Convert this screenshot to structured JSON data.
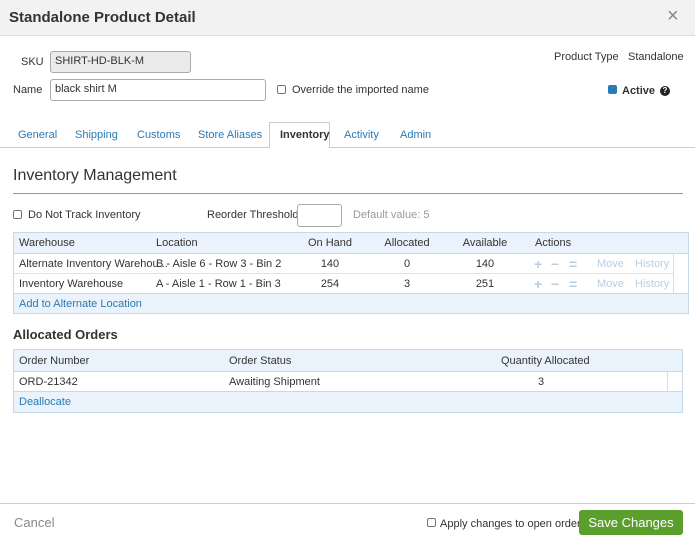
{
  "header": {
    "title": "Standalone Product Detail",
    "close": "×"
  },
  "fields": {
    "sku_label": "SKU",
    "sku": "SHIRT-HD-BLK-M",
    "name_label": "Name",
    "name": "black shirt M",
    "override": "Override the imported name",
    "product_type_label": "Product Type",
    "product_type": "Standalone",
    "active": "Active",
    "help": "?"
  },
  "tabs": {
    "items": [
      "General",
      "Shipping",
      "Customs",
      "Store Aliases",
      "Inventory",
      "Activity",
      "Admin"
    ],
    "active": 4
  },
  "inventory": {
    "title": "Inventory Management",
    "do_not_track": "Do Not Track Inventory",
    "reorder_label": "Reorder Threshold",
    "default_hint": "Default value: 5",
    "table": {
      "headers": [
        "Warehouse",
        "Location",
        "On Hand",
        "Allocated",
        "Available",
        "Actions"
      ],
      "rows": [
        [
          "Alternate Inventory Warehou...",
          "B - Aisle 6 - Row 3 - Bin 2",
          "140",
          "0",
          "140"
        ],
        [
          "Inventory Warehouse",
          "A - Aisle 1 - Row 1 - Bin 3",
          "254",
          "3",
          "251"
        ]
      ],
      "actions": [
        "+",
        "−",
        "=",
        "Move",
        "History"
      ],
      "footer_link": "Add to Alternate Location"
    }
  },
  "allocated": {
    "title": "Allocated Orders",
    "headers": [
      "Order Number",
      "Order Status",
      "Quantity Allocated"
    ],
    "rows": [
      [
        "ORD-21342",
        "Awaiting Shipment",
        "3"
      ]
    ],
    "footer_link": "Deallocate"
  },
  "footer": {
    "cancel": "Cancel",
    "apply": "Apply changes to open orders",
    "save": "Save Changes"
  }
}
